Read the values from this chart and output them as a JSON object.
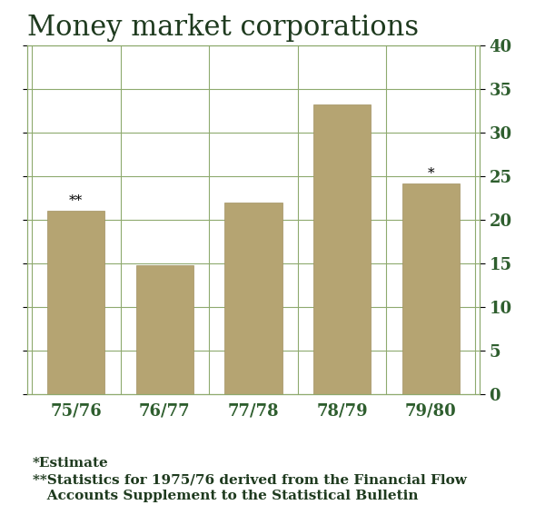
{
  "title": "Money market corporations",
  "categories": [
    "75/76",
    "76/77",
    "77/78",
    "78/79",
    "79/80"
  ],
  "values": [
    21.0,
    14.8,
    22.0,
    33.2,
    24.2
  ],
  "bar_color": "#B5A472",
  "bar_edge_color": "#A09060",
  "ylim": [
    0,
    40
  ],
  "yticks": [
    0,
    5,
    10,
    15,
    20,
    25,
    30,
    35,
    40
  ],
  "title_fontsize": 22,
  "tick_fontsize": 13,
  "annotation_75_76": "**",
  "annotation_79_80": "*",
  "footnote1": "*Estimate",
  "footnote2": "**Statistics for 1975/76 derived from the Financial Flow",
  "footnote3": "   Accounts Supplement to the Statistical Bulletin",
  "grid_color": "#8EAA6E",
  "background_color": "#FFFFFF",
  "title_color": "#1E3A1E",
  "tick_label_color": "#2E5E2E",
  "footnote_color": "#1E3A1E",
  "bar_width": 0.65,
  "annotation_color": "#000000"
}
